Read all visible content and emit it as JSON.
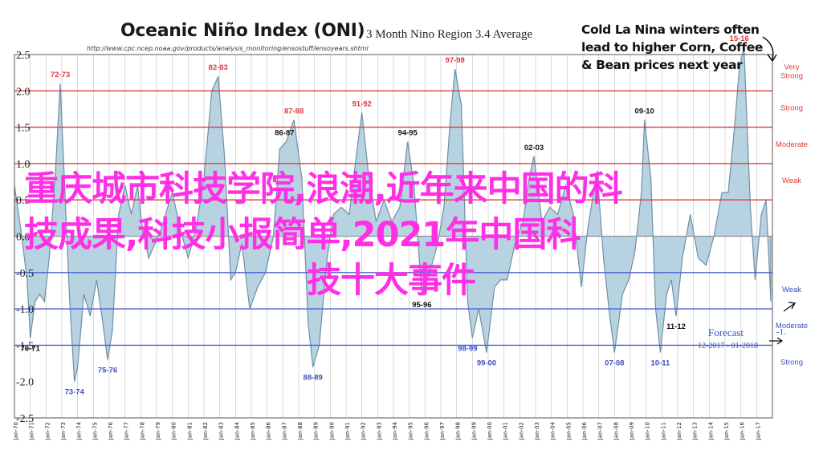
{
  "header": {
    "title": "Oceanic Niño Index (ONI)",
    "subtitle": "3 Month Nino Region 3.4 Average",
    "source_url": "http://www.cpc.ncep.noaa.gov/products/analysis_monitoring/ensostuff/ensoyears.shtml"
  },
  "callout": {
    "line1": "Cold La Nina winters often",
    "line2": "lead to higher Corn, Coffee",
    "line3": "& Bean prices next year"
  },
  "watermark": {
    "line1": "重庆城市科技学院,浪潮,近年来中国的科",
    "line2": "技成果,科技小报简单,2021年中国科",
    "line3": "技十大事件"
  },
  "colors": {
    "area_fill": "#b7d3e1",
    "area_stroke": "#6f8fa5",
    "el_nino_lines": "#e03a3a",
    "la_nina_lines": "#4b5fcf",
    "label_red": "#e03a3a",
    "label_blue": "#3b4fc2",
    "grid": "#c9c9c9",
    "watermark": "#ff2fe6"
  },
  "chart_data": {
    "type": "area",
    "x_start": "1970",
    "x_end": "2018",
    "ylim": [
      -2.5,
      2.5
    ],
    "y_ticks": [
      "2.5",
      "2.0",
      "1.5",
      "1.0",
      "0.5",
      "0.0",
      "-0.5",
      "-1.0",
      "-1.5",
      "-2.0",
      "-2.5"
    ],
    "x_ticks": [
      "Jan-70",
      "Jan-71",
      "Jan-72",
      "Jan-73",
      "Jan-74",
      "Jan-75",
      "Jan-76",
      "Jan-77",
      "Jan-78",
      "Jan-79",
      "Jan-80",
      "Jan-81",
      "Jan-82",
      "Jan-83",
      "Jan-84",
      "Jan-85",
      "Jan-86",
      "Jan-87",
      "Jan-88",
      "Jan-89",
      "Jan-90",
      "Jan-91",
      "Jan-92",
      "Jan-93",
      "Jan-94",
      "Jan-95",
      "Jan-96",
      "Jan-97",
      "Jan-98",
      "Jan-99",
      "Jan-00",
      "Jan-01",
      "Jan-02",
      "Jan-03",
      "Jan-04",
      "Jan-05",
      "Jan-06",
      "Jan-07",
      "Jan-08",
      "Jan-09",
      "Jan-10",
      "Jan-11",
      "Jan-12",
      "Jan-13",
      "Jan-14",
      "Jan-15",
      "Jan-16",
      "Jan-17"
    ],
    "threshold_lines": [
      {
        "label": "Very Strong",
        "value": 2.0,
        "kind": "el_nino"
      },
      {
        "label": "Strong",
        "value": 1.5,
        "kind": "el_nino"
      },
      {
        "label": "Moderate",
        "value": 1.0,
        "kind": "el_nino"
      },
      {
        "label": "Weak",
        "value": 0.5,
        "kind": "el_nino"
      },
      {
        "label": "Weak",
        "value": -0.5,
        "kind": "la_nina"
      },
      {
        "label": "Moderate",
        "value": -1.0,
        "kind": "la_nina"
      },
      {
        "label": "Strong",
        "value": -1.5,
        "kind": "la_nina"
      }
    ],
    "series": [
      {
        "x": [
          1970.0,
          1970.4,
          1970.8,
          1971.0,
          1971.3,
          1971.6,
          1971.9,
          1972.2,
          1972.6,
          1972.9,
          1973.2,
          1973.5,
          1973.8,
          1974.0,
          1974.4,
          1974.8,
          1975.2,
          1975.6,
          1975.9,
          1976.2,
          1976.6,
          1977.0,
          1977.4,
          1977.8,
          1978.1,
          1978.5,
          1978.9,
          1979.3,
          1979.7,
          1980.0,
          1980.5,
          1981.0,
          1981.5,
          1982.0,
          1982.5,
          1982.9,
          1983.3,
          1983.7,
          1984.0,
          1984.4,
          1984.9,
          1985.4,
          1985.9,
          1986.4,
          1986.8,
          1987.2,
          1987.7,
          1988.2,
          1988.6,
          1988.9,
          1989.3,
          1989.8,
          1990.2,
          1990.7,
          1991.2,
          1991.7,
          1992.0,
          1992.4,
          1992.9,
          1993.4,
          1993.9,
          1994.4,
          1994.9,
          1995.3,
          1995.8,
          1996.3,
          1996.8,
          1997.2,
          1997.6,
          1997.9,
          1998.3,
          1998.7,
          1999.0,
          1999.4,
          1999.9,
          2000.4,
          2000.8,
          2001.2,
          2001.7,
          2002.2,
          2002.6,
          2002.9,
          2003.4,
          2003.9,
          2004.4,
          2004.9,
          2005.4,
          2005.9,
          2006.3,
          2006.9,
          2007.3,
          2007.7,
          2008.0,
          2008.5,
          2008.9,
          2009.3,
          2009.7,
          2009.9,
          2010.3,
          2010.6,
          2010.9,
          2011.3,
          2011.6,
          2011.9,
          2012.3,
          2012.8,
          2013.3,
          2013.8,
          2014.3,
          2014.8,
          2015.2,
          2015.6,
          2015.9,
          2016.2,
          2016.6,
          2016.9,
          2017.3,
          2017.6,
          2017.9
        ],
        "values": [
          0.7,
          0.1,
          -0.6,
          -1.4,
          -0.9,
          -0.8,
          -0.9,
          -0.3,
          0.9,
          2.1,
          0.6,
          -0.9,
          -2.0,
          -1.8,
          -0.8,
          -1.1,
          -0.6,
          -1.2,
          -1.7,
          -1.3,
          0.3,
          0.7,
          0.3,
          0.7,
          0.1,
          -0.3,
          -0.1,
          0.1,
          0.4,
          0.6,
          0.1,
          -0.3,
          0.1,
          0.8,
          2.0,
          2.2,
          1.1,
          -0.6,
          -0.5,
          -0.1,
          -1.0,
          -0.7,
          -0.5,
          0.0,
          1.2,
          1.3,
          1.6,
          0.8,
          -1.2,
          -1.8,
          -1.5,
          -0.3,
          0.3,
          0.4,
          0.3,
          1.2,
          1.7,
          0.9,
          0.2,
          0.5,
          0.2,
          0.4,
          1.3,
          0.7,
          -0.8,
          -0.5,
          -0.1,
          0.4,
          1.6,
          2.3,
          1.8,
          -0.9,
          -1.4,
          -1.0,
          -1.6,
          -0.7,
          -0.6,
          -0.6,
          -0.1,
          0.2,
          0.8,
          1.1,
          0.2,
          0.4,
          0.3,
          0.7,
          0.3,
          -0.7,
          0.1,
          0.9,
          -0.3,
          -1.1,
          -1.6,
          -0.8,
          -0.6,
          -0.2,
          0.6,
          1.6,
          0.8,
          -1.0,
          -1.6,
          -0.8,
          -0.6,
          -1.1,
          -0.3,
          0.3,
          -0.3,
          -0.4,
          0.0,
          0.6,
          0.6,
          1.5,
          2.3,
          2.6,
          0.4,
          -0.6,
          0.3,
          0.5,
          -0.9
        ]
      }
    ],
    "annotations": [
      {
        "label": "72-73",
        "x": 1972.9,
        "y": 2.1,
        "kind": "el_nino"
      },
      {
        "label": "82-83",
        "x": 1982.9,
        "y": 2.2,
        "kind": "el_nino"
      },
      {
        "label": "86-87",
        "x": 1987.1,
        "y": 1.3,
        "kind": "neutral"
      },
      {
        "label": "87-88",
        "x": 1987.7,
        "y": 1.6,
        "kind": "el_nino"
      },
      {
        "label": "91-92",
        "x": 1992.0,
        "y": 1.7,
        "kind": "el_nino"
      },
      {
        "label": "94-95",
        "x": 1994.9,
        "y": 1.3,
        "kind": "neutral"
      },
      {
        "label": "97-98",
        "x": 1997.9,
        "y": 2.3,
        "kind": "el_nino"
      },
      {
        "label": "02-03",
        "x": 2002.9,
        "y": 1.1,
        "kind": "neutral"
      },
      {
        "label": "09-10",
        "x": 2009.9,
        "y": 1.6,
        "kind": "neutral"
      },
      {
        "label": "15-16",
        "x": 2015.9,
        "y": 2.6,
        "kind": "el_nino"
      },
      {
        "label": "70-71",
        "x": 1971.0,
        "y": -1.4,
        "kind": "neutral"
      },
      {
        "label": "73-74",
        "x": 1973.8,
        "y": -2.0,
        "kind": "la_nina"
      },
      {
        "label": "75-76",
        "x": 1975.9,
        "y": -1.7,
        "kind": "la_nina"
      },
      {
        "label": "88-89",
        "x": 1988.9,
        "y": -1.8,
        "kind": "la_nina"
      },
      {
        "label": "95-96",
        "x": 1995.8,
        "y": -0.8,
        "kind": "neutral"
      },
      {
        "label": "98-99",
        "x": 1998.7,
        "y": -1.4,
        "kind": "la_nina"
      },
      {
        "label": "99-00",
        "x": 1999.9,
        "y": -1.6,
        "kind": "la_nina"
      },
      {
        "label": "07-08",
        "x": 2008.0,
        "y": -1.6,
        "kind": "la_nina"
      },
      {
        "label": "10-11",
        "x": 2010.9,
        "y": -1.6,
        "kind": "la_nina"
      },
      {
        "label": "11-12",
        "x": 2011.9,
        "y": -1.1,
        "kind": "neutral"
      }
    ],
    "forecast": {
      "label": "Forecast",
      "period": "12-2017 - 01-2018",
      "value_label": "-1."
    }
  }
}
